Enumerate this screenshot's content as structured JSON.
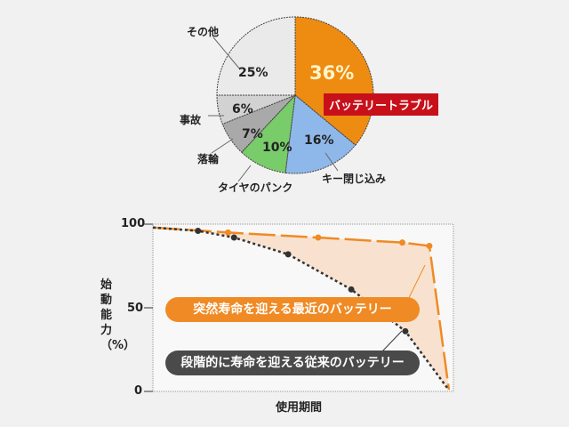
{
  "chart_data": [
    {
      "type": "pie",
      "start": "top",
      "direction": "clockwise",
      "slices": [
        {
          "label": "バッテリートラブル",
          "value": 36,
          "pct_label": "36%",
          "color": "#ee8c12"
        },
        {
          "label": "キー閉じ込み",
          "value": 16,
          "pct_label": "16%",
          "color": "#8fb8ea"
        },
        {
          "label": "タイヤのパンク",
          "value": 10,
          "pct_label": "10%",
          "color": "#78cc6a"
        },
        {
          "label": "落輪",
          "value": 7,
          "pct_label": "7%",
          "color": "#a9a9a9"
        },
        {
          "label": "事故",
          "value": 6,
          "pct_label": "6%",
          "color": "#d2d2d2"
        },
        {
          "label": "その他",
          "value": 25,
          "pct_label": "25%",
          "color": "#eaeaea"
        }
      ]
    },
    {
      "type": "line",
      "xlabel": "使用期間",
      "ylabel": "始動能力（%）",
      "ylim": [
        0,
        100
      ],
      "xlim": [
        0,
        100
      ],
      "yticks": [
        "0",
        "50",
        "100"
      ],
      "series": [
        {
          "name": "突然寿命を迎える最近のバッテリー",
          "color": "#f08a24",
          "style": "dashed",
          "x": [
            0,
            25,
            55,
            83,
            92,
            98.5
          ],
          "y": [
            98,
            95,
            92,
            89,
            87,
            1
          ]
        },
        {
          "name": "段階的に寿命を迎える従来のバッテリー",
          "color": "#333333",
          "style": "dotted",
          "x": [
            0,
            15,
            27,
            45,
            66,
            84,
            98
          ],
          "y": [
            98,
            96,
            92,
            82,
            61,
            36,
            2
          ]
        }
      ]
    }
  ]
}
